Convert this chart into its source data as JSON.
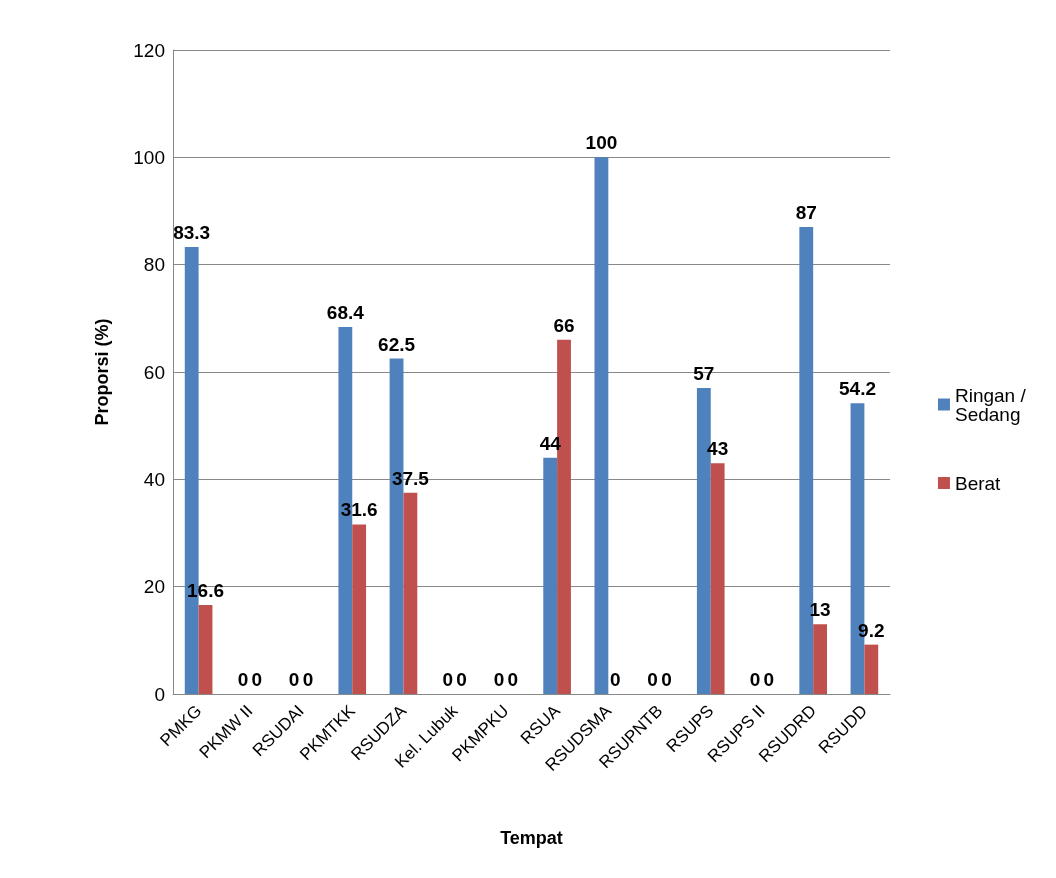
{
  "chart_data": {
    "type": "bar",
    "xlabel": "Tempat",
    "ylabel": "Proporsi (%)",
    "categories": [
      "PMKG",
      "PKMW II",
      "RSUDAI",
      "PKMTKK",
      "RSUDZA",
      "Kel. Lubuk",
      "PKMPKU",
      "RSUA",
      "RSUDSMA",
      "RSUPNTB",
      "RSUPS",
      "RSUPS II",
      "RSUDRD",
      "RSUDD"
    ],
    "series": [
      {
        "name": "Ringan / Sedang",
        "color": "#4f81bd",
        "values": [
          83.3,
          0,
          0,
          68.4,
          62.5,
          0,
          0,
          44,
          100,
          0,
          57,
          0,
          87,
          54.2
        ]
      },
      {
        "name": "Berat",
        "color": "#c0504d",
        "values": [
          16.6,
          0,
          0,
          31.6,
          37.5,
          0,
          0,
          66,
          0,
          0,
          43,
          0,
          13,
          9.2
        ]
      }
    ],
    "ylim": [
      0,
      120
    ],
    "yticks": [
      0,
      20,
      40,
      60,
      80,
      100,
      120
    ],
    "grid": "y",
    "legend": "right",
    "data_labels": true
  }
}
